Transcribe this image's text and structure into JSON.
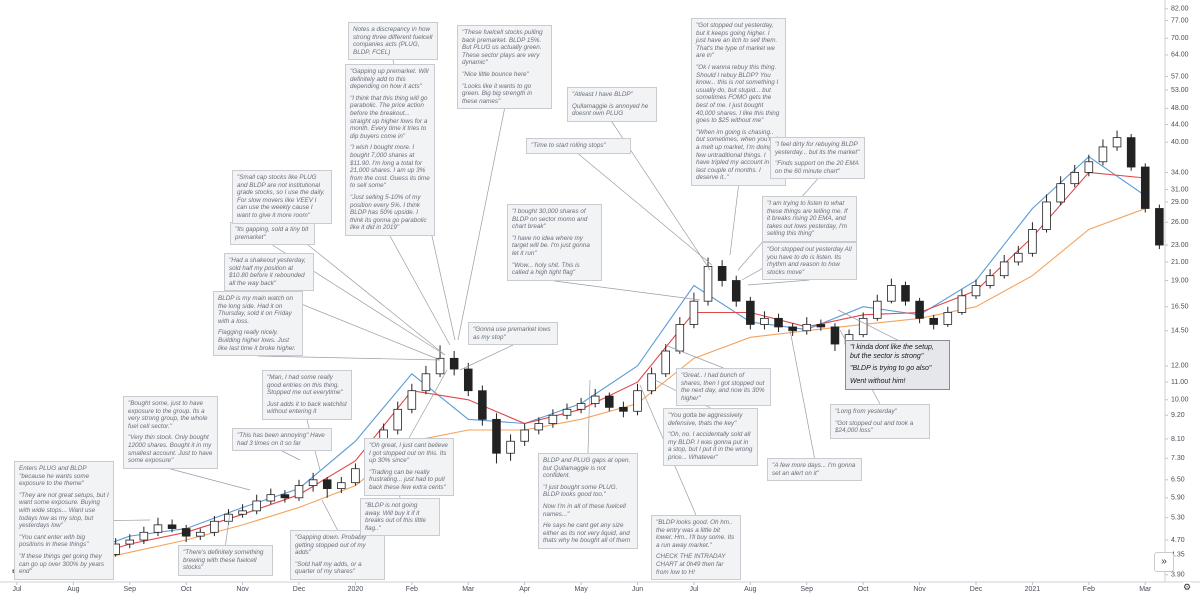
{
  "chart_data": {
    "type": "candlestick",
    "log_scale": true,
    "xlim": [
      -0.3,
      20.35
    ],
    "ylim": [
      3.75,
      86
    ],
    "xticks": [
      {
        "value": 0,
        "label": "Jul"
      },
      {
        "value": 1,
        "label": "Aug"
      },
      {
        "value": 2,
        "label": "Sep"
      },
      {
        "value": 3,
        "label": "Oct"
      },
      {
        "value": 4,
        "label": "Nov"
      },
      {
        "value": 5,
        "label": "Dec"
      },
      {
        "value": 6,
        "label": "2020"
      },
      {
        "value": 7,
        "label": "Feb"
      },
      {
        "value": 8,
        "label": "Mar"
      },
      {
        "value": 9,
        "label": "Apr"
      },
      {
        "value": 10,
        "label": "May"
      },
      {
        "value": 11,
        "label": "Jun"
      },
      {
        "value": 12,
        "label": "Jul"
      },
      {
        "value": 13,
        "label": "Aug"
      },
      {
        "value": 14,
        "label": "Sep"
      },
      {
        "value": 15,
        "label": "Oct"
      },
      {
        "value": 16,
        "label": "Nov"
      },
      {
        "value": 17,
        "label": "Dec"
      },
      {
        "value": 18,
        "label": "2021"
      },
      {
        "value": 19,
        "label": "Feb"
      },
      {
        "value": 20,
        "label": "Mar"
      }
    ],
    "yticks": [
      {
        "value": 3.9,
        "label": "3.90"
      },
      {
        "value": 4.35,
        "label": "4.35"
      },
      {
        "value": 4.7,
        "label": "4.70"
      },
      {
        "value": 5.3,
        "label": "5.30"
      },
      {
        "value": 5.9,
        "label": "5.90"
      },
      {
        "value": 6.5,
        "label": "6.50"
      },
      {
        "value": 7.3,
        "label": "7.30"
      },
      {
        "value": 8.1,
        "label": "8.10"
      },
      {
        "value": 9.2,
        "label": "9.20"
      },
      {
        "value": 10,
        "label": "10.00"
      },
      {
        "value": 11,
        "label": "11.00"
      },
      {
        "value": 12,
        "label": "12.00"
      },
      {
        "value": 14.5,
        "label": "14.50"
      },
      {
        "value": 16.5,
        "label": "16.50"
      },
      {
        "value": 19,
        "label": "19.00"
      },
      {
        "value": 21,
        "label": "21.00"
      },
      {
        "value": 23,
        "label": "23.00"
      },
      {
        "value": 26,
        "label": "26.00"
      },
      {
        "value": 29,
        "label": "29.00"
      },
      {
        "value": 31,
        "label": "31.00"
      },
      {
        "value": 34,
        "label": "34.00"
      },
      {
        "value": 40,
        "label": "40.00"
      },
      {
        "value": 44,
        "label": "44.00"
      },
      {
        "value": 48,
        "label": "48.00"
      },
      {
        "value": 53,
        "label": "53.00"
      },
      {
        "value": 57,
        "label": "57.00"
      },
      {
        "value": 64,
        "label": "64.00"
      },
      {
        "value": 70,
        "label": "70.00"
      },
      {
        "value": 77,
        "label": "77.00"
      },
      {
        "value": 82,
        "label": "82.00"
      }
    ],
    "up_color": "#ffffff",
    "down_color": "#222222",
    "x": [
      0,
      0.25,
      0.5,
      0.75,
      1,
      1.25,
      1.5,
      1.75,
      2,
      2.25,
      2.5,
      2.75,
      3,
      3.25,
      3.5,
      3.75,
      4,
      4.25,
      4.5,
      4.75,
      5,
      5.25,
      5.5,
      5.75,
      6,
      6.25,
      6.5,
      6.75,
      7,
      7.25,
      7.5,
      7.75,
      8,
      8.25,
      8.5,
      8.75,
      9,
      9.25,
      9.5,
      9.75,
      10,
      10.25,
      10.5,
      10.75,
      11,
      11.25,
      11.5,
      11.75,
      12,
      12.25,
      12.5,
      12.75,
      13,
      13.25,
      13.5,
      13.75,
      14,
      14.25,
      14.5,
      14.75,
      15,
      15.25,
      15.5,
      15.75,
      16,
      16.25,
      16.5,
      16.75,
      17,
      17.25,
      17.5,
      17.75,
      18,
      18.25,
      18.5,
      18.75,
      19,
      19.25,
      19.5,
      19.75,
      20,
      20.25
    ],
    "candles": [
      [
        3.95,
        4.12,
        3.85,
        4.0
      ],
      [
        4.0,
        4.22,
        3.9,
        4.1
      ],
      [
        4.1,
        4.32,
        4.0,
        4.2
      ],
      [
        4.2,
        4.3,
        4.05,
        4.15
      ],
      [
        4.15,
        4.42,
        4.05,
        4.3
      ],
      [
        4.3,
        4.55,
        4.2,
        4.4
      ],
      [
        4.4,
        4.5,
        4.25,
        4.35
      ],
      [
        4.35,
        4.75,
        4.3,
        4.6
      ],
      [
        4.6,
        4.85,
        4.5,
        4.7
      ],
      [
        4.7,
        5.05,
        4.6,
        4.9
      ],
      [
        4.9,
        5.3,
        4.8,
        5.1
      ],
      [
        5.1,
        5.25,
        4.9,
        5.0
      ],
      [
        5.0,
        5.1,
        4.65,
        4.8
      ],
      [
        4.8,
        5.0,
        4.7,
        4.9
      ],
      [
        4.9,
        5.35,
        4.8,
        5.2
      ],
      [
        5.2,
        5.55,
        5.1,
        5.4
      ],
      [
        5.4,
        5.7,
        5.3,
        5.5
      ],
      [
        5.5,
        6.0,
        5.4,
        5.8
      ],
      [
        5.8,
        6.2,
        5.7,
        6.0
      ],
      [
        6.0,
        6.15,
        5.75,
        5.9
      ],
      [
        5.9,
        6.5,
        5.8,
        6.3
      ],
      [
        6.3,
        6.75,
        6.1,
        6.5
      ],
      [
        6.5,
        6.6,
        5.9,
        6.2
      ],
      [
        6.2,
        6.6,
        6.05,
        6.4
      ],
      [
        6.4,
        7.1,
        6.3,
        6.9
      ],
      [
        6.9,
        7.8,
        6.8,
        7.5
      ],
      [
        7.5,
        8.8,
        7.4,
        8.5
      ],
      [
        8.5,
        9.9,
        8.3,
        9.5
      ],
      [
        9.5,
        10.9,
        9.3,
        10.5
      ],
      [
        10.5,
        12.0,
        10.3,
        11.5
      ],
      [
        11.5,
        13.4,
        11.3,
        12.5
      ],
      [
        12.5,
        13.0,
        11.4,
        11.8
      ],
      [
        11.8,
        12.2,
        10.2,
        10.5
      ],
      [
        10.5,
        10.8,
        8.7,
        9.0
      ],
      [
        9.0,
        9.3,
        7.1,
        7.5
      ],
      [
        7.5,
        8.3,
        7.2,
        8.0
      ],
      [
        8.0,
        8.8,
        7.8,
        8.5
      ],
      [
        8.5,
        9.1,
        8.3,
        8.8
      ],
      [
        8.8,
        9.5,
        8.6,
        9.2
      ],
      [
        9.2,
        9.8,
        9.0,
        9.5
      ],
      [
        9.5,
        10.1,
        9.3,
        9.8
      ],
      [
        9.8,
        10.6,
        9.6,
        10.2
      ],
      [
        10.2,
        10.4,
        9.4,
        9.6
      ],
      [
        9.6,
        9.9,
        9.1,
        9.4
      ],
      [
        9.4,
        10.9,
        9.2,
        10.5
      ],
      [
        10.5,
        11.9,
        10.3,
        11.5
      ],
      [
        11.5,
        13.5,
        11.3,
        13.0
      ],
      [
        13.0,
        15.6,
        12.8,
        15.0
      ],
      [
        15.0,
        17.8,
        14.7,
        17.0
      ],
      [
        17.0,
        21.5,
        16.6,
        20.5
      ],
      [
        20.5,
        21.2,
        18.4,
        19.0
      ],
      [
        19.0,
        19.5,
        16.5,
        17.0
      ],
      [
        17.0,
        17.4,
        14.6,
        15.0
      ],
      [
        15.0,
        16.1,
        14.6,
        15.5
      ],
      [
        15.5,
        15.9,
        14.4,
        14.8
      ],
      [
        14.8,
        15.1,
        14.1,
        14.5
      ],
      [
        14.5,
        15.6,
        14.2,
        15.0
      ],
      [
        15.0,
        15.4,
        14.5,
        14.8
      ],
      [
        14.8,
        15.1,
        13.0,
        13.5
      ],
      [
        13.5,
        14.6,
        13.2,
        14.2
      ],
      [
        14.2,
        16.0,
        14.0,
        15.5
      ],
      [
        15.5,
        17.6,
        15.3,
        17.0
      ],
      [
        17.0,
        19.2,
        16.8,
        18.5
      ],
      [
        18.5,
        18.9,
        16.6,
        17.0
      ],
      [
        17.0,
        17.3,
        15.1,
        15.5
      ],
      [
        15.5,
        15.8,
        14.6,
        15.0
      ],
      [
        15.0,
        16.5,
        14.8,
        16.0
      ],
      [
        16.0,
        18.1,
        15.8,
        17.5
      ],
      [
        17.5,
        19.1,
        17.2,
        18.5
      ],
      [
        18.5,
        20.2,
        18.2,
        19.5
      ],
      [
        19.5,
        21.8,
        19.2,
        21.0
      ],
      [
        21.0,
        22.9,
        20.6,
        22.0
      ],
      [
        22.0,
        26.0,
        21.6,
        25.0
      ],
      [
        25.0,
        30.2,
        24.6,
        29.0
      ],
      [
        29.0,
        33.3,
        28.5,
        32.0
      ],
      [
        32.0,
        35.4,
        31.4,
        34.0
      ],
      [
        34.0,
        37.4,
        33.3,
        36.0
      ],
      [
        36.0,
        40.6,
        35.3,
        39.0
      ],
      [
        39.0,
        42.6,
        38.2,
        41.0
      ],
      [
        41.0,
        41.8,
        34.3,
        35.0
      ],
      [
        35.0,
        35.7,
        27.4,
        28.0
      ],
      [
        28.0,
        28.6,
        22.5,
        23.0
      ]
    ],
    "line_x": [
      0,
      1,
      2,
      3,
      4,
      5,
      6,
      7,
      8,
      9,
      10,
      11,
      12,
      13,
      14,
      15,
      16,
      17,
      18,
      19,
      20
    ],
    "lines": [
      {
        "color": "#5b9bd5",
        "values": [
          4.0,
          4.3,
          4.8,
          5.0,
          5.6,
          6.2,
          8.0,
          11.5,
          9.0,
          8.8,
          9.8,
          12.0,
          18.5,
          15.2,
          14.6,
          16.5,
          15.8,
          19.0,
          28,
          37,
          30
        ]
      },
      {
        "color": "#e0474c",
        "values": [
          3.95,
          4.2,
          4.6,
          4.9,
          5.4,
          6.0,
          7.2,
          10.5,
          10.0,
          8.8,
          9.5,
          11.0,
          16.0,
          16.0,
          14.8,
          15.8,
          16.0,
          18.0,
          24,
          34,
          33
        ]
      },
      {
        "color": "#f5a35c",
        "values": [
          3.9,
          4.1,
          4.4,
          4.7,
          5.1,
          5.6,
          6.3,
          8.0,
          8.5,
          8.5,
          9.0,
          9.8,
          12.5,
          14.0,
          14.5,
          15.0,
          15.5,
          16.5,
          19.5,
          25,
          28
        ]
      }
    ],
    "annotations": [
      [
        "Enters PLUG and BLDP \"because he wants some exposure to the theme\"",
        "\"They are not great setups, but I want some exposure. Buying with wide stops... Want use todays low as my stop, but yesterdays low\"",
        "\"You cant enter with big positions in these things\"",
        "\"If these things get going they can go up over 300% by years end\""
      ],
      [
        "\"Bought some, just to have exposure to the group. Its a very strong group, the whole fuel cell sector.\"",
        "\"Very thin stock. Only bought 12000 shares. Bought it in my smallest account. Just to have some exposure\""
      ],
      [
        "\"There's definitely something brewing with these fuelcell stocks\""
      ],
      [
        "\"This has been annoying\" Have had 3 times on it so far"
      ],
      [
        "\"Man, I had some really good entries on this thing. Stopped me out everytime\"",
        "Just adds it to back watchlist without entering it"
      ],
      [
        "\"Gapping down. Probably getting stopped out of my adds\"",
        "\"Sold half my adds, or a quarter of my shares\""
      ],
      [
        "\"BLDP is not going away. Will buy it if it breaks out of this little flag..\""
      ],
      [
        "BLDP is my main watch on the long side. Had it on Thursday, sold it on Friday with a loss.",
        "Flagging really nicely. Building higher lows. Just like last time it broke higher."
      ],
      [
        "\"Had a shakeout yesterday, sold half my position at $10.80 before it rebounded all the way back\""
      ],
      [
        "\"Its gapping, sold a tiny bit premarket\""
      ],
      [
        "\"Small cap stocks like PLUG and BLDP are not institutional grade stocks, so I use the daily. For slow movers like VEEV I can use the weekly cause I want to give it more room\""
      ],
      [
        "\"Gapping up premarket. Will definitely add to this depending on how it acts\"",
        "\"I think that this thing will go parabolic. The price action before the breakout... straight up higher lows for a month. Every time it tries to dip buyers come in\"",
        "\"I wish I bought more. I bought 7,000 shares at $11.90. I'm long a total for 21,000 shares. I am up 3% from the cost. Guess its time to sell some\"",
        "\"Just selling 5-10% of my position every 5%. I think BLDP has 50% upside. I think its gonna go parabolic like it did in 2019\""
      ],
      [
        "Notes a discrepancy in how strong three different fuelcell companies acts (PLUG, BLDP, FCEL)"
      ],
      [
        "\"These fuelcell stocks pulling back premarket. BLDP 15%. But PLUG us actually green. These sector plays are very dynamic\"",
        "\"Nice little bounce here\"",
        "\"Looks like it wants to go green. Big big strength in these names\""
      ],
      [
        "\"Gonna use premarket lows as my stop\""
      ],
      [
        "\"Oh great, I just cant believe I got stopped out on this. Its up 30% since\"",
        "\"Trading can be really frustrating... just had to pull back these few extra cents\""
      ],
      [
        "\"Atleast I have BLDP\"",
        "Qullamaggie is annoyed he doesnt own PLUG"
      ],
      [
        "\"Time to start rolling stops\""
      ],
      [
        "\"I bought 30,000 shares of BLDP on sector momo and chart break\"",
        "\"I have no idea where my target will be. I'm just gonna let it run\"",
        "\"Wow... holy shit. This is called a high tight flag\""
      ],
      [
        "BLDP and PLUG gaps at open, but Qullamaggie is not confident.",
        "\"I just bought some PLUG. BLDP looks good too.\"",
        "Now I'm in all of these fuelcell names...\"",
        "He says he cant get any size either as its not very liquid, and thats why he bought all of them"
      ],
      [
        "\"Great.. I had bunch of shares, then I got stopped out the next day, and now its 30% higher\""
      ],
      [
        "\"You gotta be aggressively defensive, thats the key\"",
        "\"Oh, no. I accidentally sold all my BLDP. I was gonna put in a stop, but I put it in the wrong price... Whatever\""
      ],
      [
        "\"BLDP looks good. Oh hm.. the entry was a little bit lower. Hm.. I'll buy some. Its a run away market.\"",
        "CHECK THE INTRADAY CHART at 0h49 then far from low to H!"
      ],
      [
        "\"Got stopped out yesterday, but it keeps going higher. I just have an itch to sell them. That's the type of market we are in\"",
        "\"Ok I wanna rebuy this thing. Should I rebuy BLDP? You know... this is not something I usually do, but stupid... but sometimes FOMO gets the best of me. I just bought 40,000 shares. I like this thing goes to $25 without me\"",
        "\"When im going is chasing.. but sometimes, when you're in a melt up market, I'm doing a few untraditional things. I have tripled my account in the last couple of months. I deserve it..\""
      ],
      [
        "\"I feel dirty for rebuying BLDP yesterday... but its the market\"",
        "\"Finds support on the 20 EMA on the 60 minute chart\""
      ],
      [
        "\"I am trying to listen to what these things are telling me. If it breaks rising 20 EMA, and takes out lows yesterday, I'm selling this thing\""
      ],
      [
        "\"Got stopped out yesterday All you have to do is listen. Its rhythm and reason to how stocks move\""
      ],
      [
        "\"I kinda dont like the setup, but the sector is strong\"",
        "\"BLDP is trying to go also\"",
        "Went without him!"
      ],
      [
        "\"Long from yesterday\"",
        "\"Got stopped out and took a $24,000 loss\""
      ],
      [
        "\"A few more days... I'm gonna set an alert on it\""
      ]
    ]
  }
}
